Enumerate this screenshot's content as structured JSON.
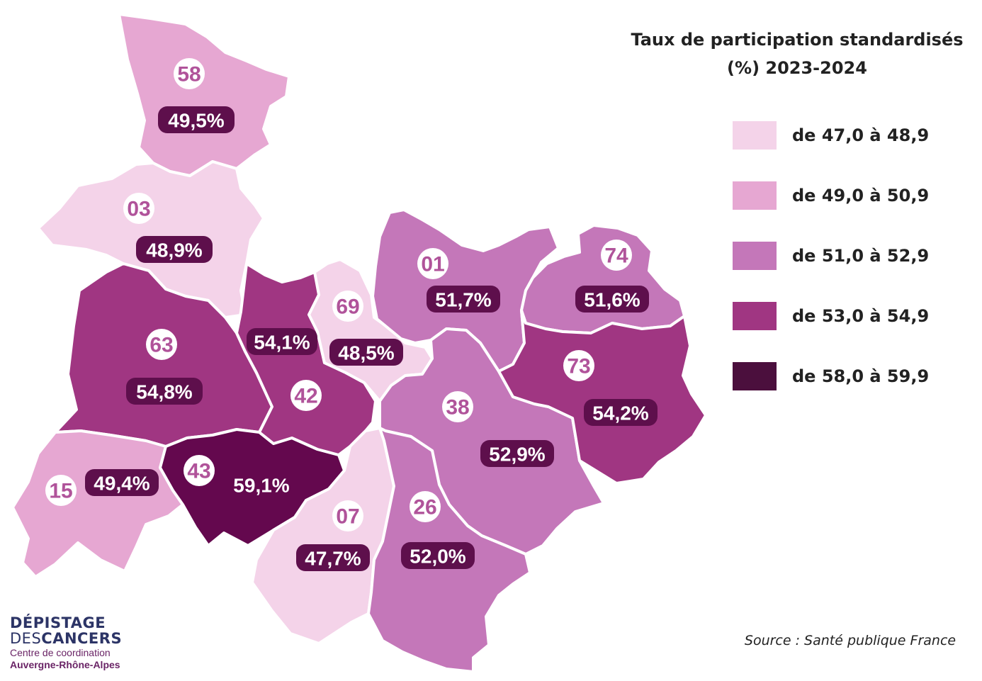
{
  "title": {
    "line1": "Taux de participation standardisés",
    "line2": "(%) 2023-2024"
  },
  "legend": [
    {
      "label": "de 47,0 à 48,9",
      "color": "#f4d3e9"
    },
    {
      "label": "de 49,0 à 50,9",
      "color": "#e6a7d2"
    },
    {
      "label": "de 51,0 à 52,9",
      "color": "#c477b9"
    },
    {
      "label": "de 53,0 à 54,9",
      "color": "#a03682"
    },
    {
      "label": "de 58,0 à 59,9",
      "color": "#4b0f3d"
    }
  ],
  "departments": [
    {
      "code": "58",
      "rate": "49,5%",
      "color": "#e6a7d2"
    },
    {
      "code": "03",
      "rate": "48,9%",
      "color": "#f4d3e9"
    },
    {
      "code": "63",
      "rate": "54,8%",
      "color": "#a03682"
    },
    {
      "code": "15",
      "rate": "49,4%",
      "color": "#e6a7d2"
    },
    {
      "code": "43",
      "rate": "59,1%",
      "color": "#64084e"
    },
    {
      "code": "42",
      "rate": "54,1%",
      "color": "#a03682"
    },
    {
      "code": "69",
      "rate": "48,5%",
      "color": "#f4d3e9"
    },
    {
      "code": "07",
      "rate": "47,7%",
      "color": "#f4d3e9"
    },
    {
      "code": "01",
      "rate": "51,7%",
      "color": "#c477b9"
    },
    {
      "code": "74",
      "rate": "51,6%",
      "color": "#c477b9"
    },
    {
      "code": "38",
      "rate": "52,9%",
      "color": "#c477b9"
    },
    {
      "code": "26",
      "rate": "52,0%",
      "color": "#c477b9"
    },
    {
      "code": "73",
      "rate": "54,2%",
      "color": "#a03682"
    }
  ],
  "label_colors": {
    "code_text": "#b0539a",
    "rate_pill": "#5e0f4c"
  },
  "source": "Source : Santé publique France",
  "logo": {
    "line1": "DÉPISTAGE",
    "line2a": "DES",
    "line2b": "CANCERS",
    "line3": "Centre de coordination",
    "line4": "Auvergne-Rhône-Alpes"
  }
}
